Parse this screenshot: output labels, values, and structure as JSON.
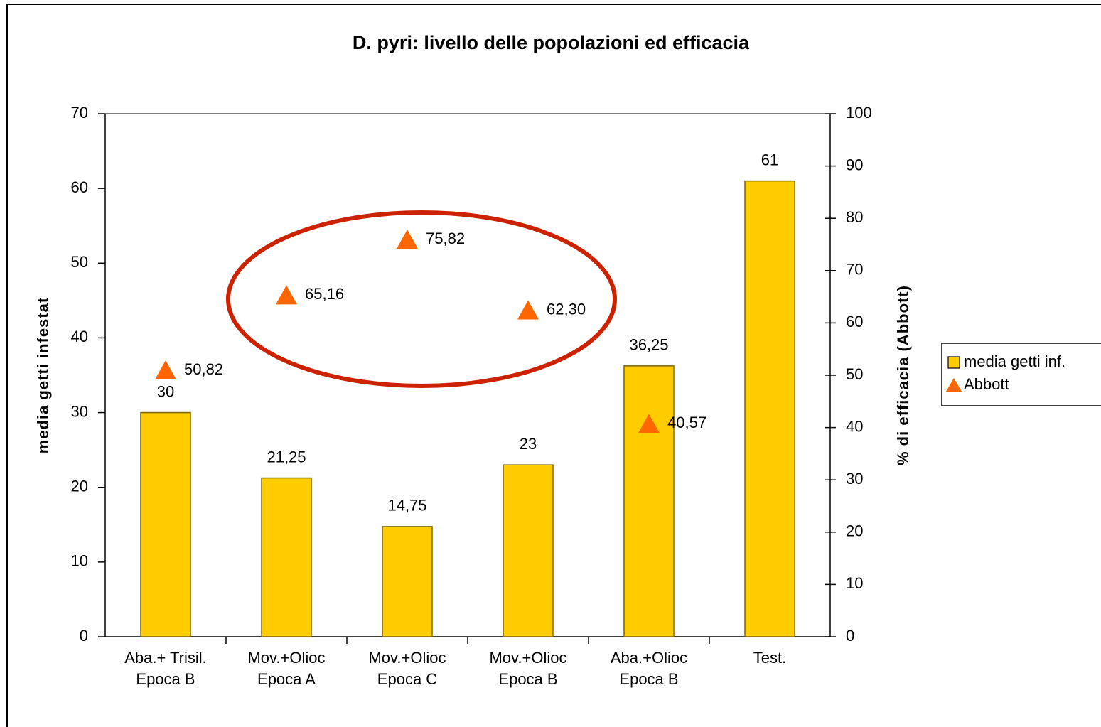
{
  "chart_data": {
    "type": "bar",
    "title": "D. pyri: livello delle popolazioni ed efficacia",
    "y_label": "media getti infestat",
    "y2_label": "% di efficacia (Abbott)",
    "categories": [
      [
        "Aba.+ Trisil.",
        "Epoca B"
      ],
      [
        "Mov.+Olioc",
        "Epoca A"
      ],
      [
        "Mov.+Olioc",
        "Epoca C"
      ],
      [
        "Mov.+Olioc",
        "Epoca B"
      ],
      [
        "Aba.+Olioc",
        "Epoca B"
      ],
      [
        "Test."
      ]
    ],
    "series": [
      {
        "name": "media getti inf.",
        "type": "bar",
        "color": "#ffcc00",
        "values": [
          30,
          21.25,
          14.75,
          23,
          36.25,
          61
        ],
        "value_labels": [
          "30",
          "21,25",
          "14,75",
          "23",
          "36,25",
          "61"
        ]
      },
      {
        "name": "Abbott",
        "type": "scatter",
        "axis": "y2",
        "color": "#ff6600",
        "values": [
          50.82,
          65.16,
          75.82,
          62.3,
          40.57,
          null
        ],
        "value_labels": [
          "50,82",
          "65,16",
          "75,82",
          "62,30",
          "40,57",
          null
        ]
      }
    ],
    "ylim": [
      0,
      70
    ],
    "yticks": [
      0,
      10,
      20,
      30,
      40,
      50,
      60,
      70
    ],
    "y2lim": [
      0,
      100
    ],
    "y2ticks": [
      0,
      10,
      20,
      30,
      40,
      50,
      60,
      70,
      80,
      90,
      100
    ],
    "legend": "right"
  }
}
